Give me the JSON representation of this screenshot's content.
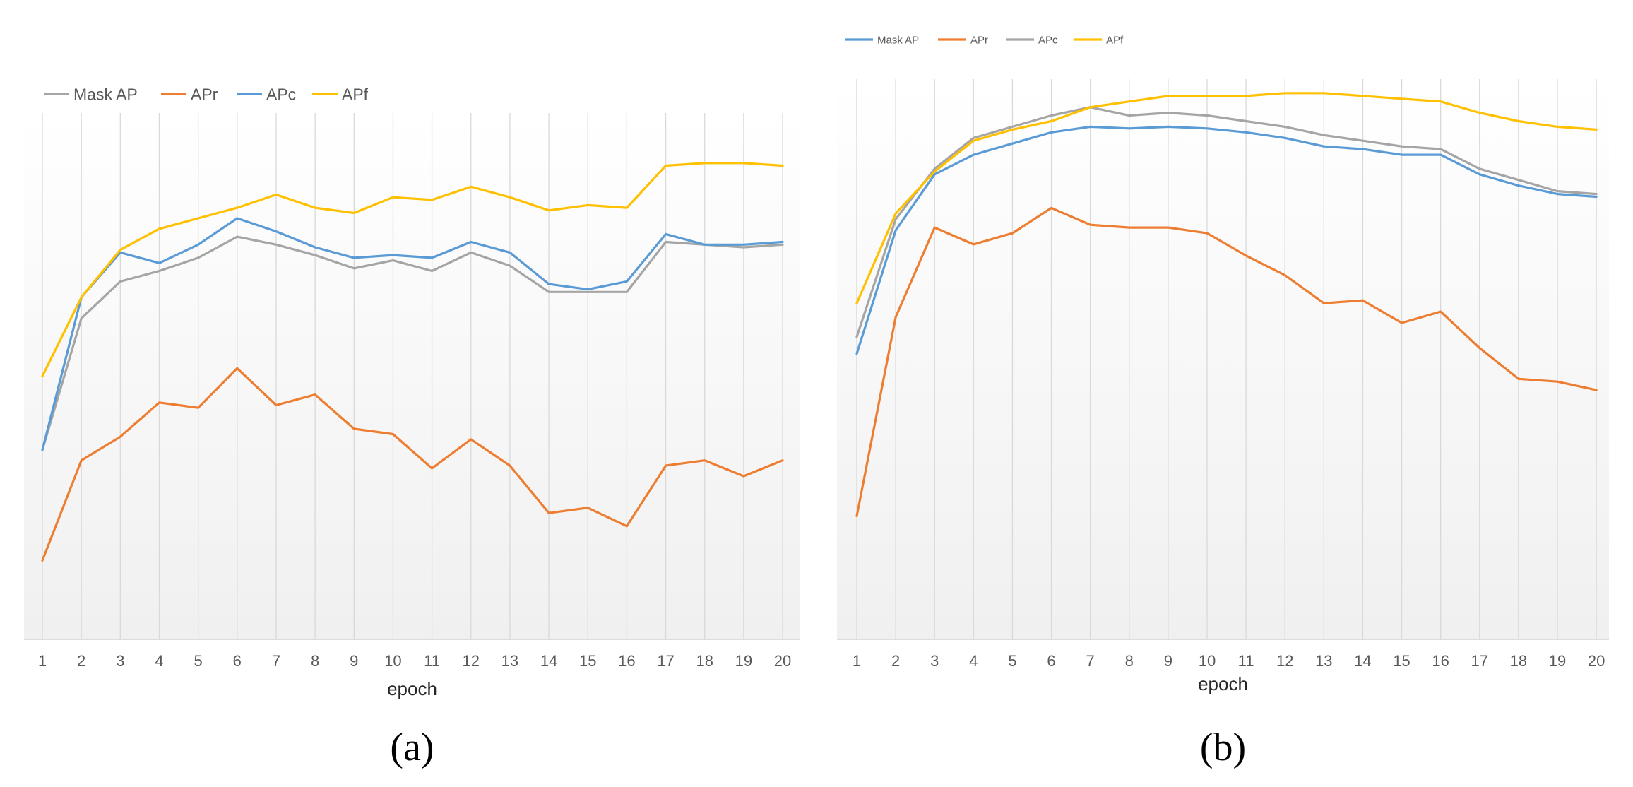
{
  "chart_data": [
    {
      "type": "line",
      "x_label": "epoch",
      "caption": "(a)",
      "categories": [
        "1",
        "2",
        "3",
        "4",
        "5",
        "6",
        "7",
        "8",
        "9",
        "10",
        "11",
        "12",
        "13",
        "14",
        "15",
        "16",
        "17",
        "18",
        "19",
        "20"
      ],
      "ylim": [
        0,
        100
      ],
      "grid": "vertical",
      "legend_position": "top-left",
      "series": [
        {
          "name": "Mask AP",
          "color": "#A5A5A5",
          "values": [
            36,
            61,
            68,
            70,
            72.5,
            76.5,
            75,
            73,
            70.5,
            72,
            70,
            73.5,
            71,
            66,
            66,
            66,
            75.5,
            75,
            74.5,
            75
          ]
        },
        {
          "name": "APr",
          "color": "#ED7D31",
          "values": [
            15,
            34,
            38.5,
            45,
            44,
            51.5,
            44.5,
            46.5,
            40,
            39,
            32.5,
            38,
            33,
            24,
            25,
            21.5,
            33,
            34,
            31,
            34
          ]
        },
        {
          "name": "APc",
          "color": "#5B9BD5",
          "values": [
            36,
            65,
            73.5,
            71.5,
            75,
            80,
            77.5,
            74.5,
            72.5,
            73,
            72.5,
            75.5,
            73.5,
            67.5,
            66.5,
            68,
            77,
            75,
            75,
            75.5
          ]
        },
        {
          "name": "APf",
          "color": "#FFC000",
          "values": [
            50,
            65,
            74,
            78,
            80,
            82,
            84.5,
            82,
            81,
            84,
            83.5,
            86,
            84,
            81.5,
            82.5,
            82,
            90,
            90.5,
            90.5,
            90
          ]
        }
      ]
    },
    {
      "type": "line",
      "x_label": "epoch",
      "caption": "(b)",
      "categories": [
        "1",
        "2",
        "3",
        "4",
        "5",
        "6",
        "7",
        "8",
        "9",
        "10",
        "11",
        "12",
        "13",
        "14",
        "15",
        "16",
        "17",
        "18",
        "19",
        "20"
      ],
      "ylim": [
        0,
        100
      ],
      "grid": "vertical",
      "legend_position": "top-left",
      "series": [
        {
          "name": "Mask AP",
          "color": "#5B9BD5",
          "values": [
            51,
            73,
            83,
            86.5,
            88.5,
            90.5,
            91.5,
            91.2,
            91.5,
            91.2,
            90.5,
            89.5,
            88,
            87.5,
            86.5,
            86.5,
            83,
            81,
            79.5,
            79
          ]
        },
        {
          "name": "APr",
          "color": "#ED7D31",
          "values": [
            22,
            57.5,
            73.5,
            70.5,
            72.5,
            77,
            74,
            73.5,
            73.5,
            72.5,
            68.5,
            65,
            60,
            60.5,
            56.5,
            58.5,
            52,
            46.5,
            46,
            44.5
          ]
        },
        {
          "name": "APc",
          "color": "#A5A5A5",
          "values": [
            54,
            75,
            84,
            89.5,
            91.5,
            93.5,
            95,
            93.5,
            94,
            93.5,
            92.5,
            91.5,
            90,
            89,
            88,
            87.5,
            84,
            82,
            80,
            79.5
          ]
        },
        {
          "name": "APf",
          "color": "#FFC000",
          "values": [
            60,
            76,
            83.5,
            89,
            91,
            92.5,
            95,
            96,
            97,
            97,
            97,
            97.5,
            97.5,
            97,
            96.5,
            96,
            94,
            92.5,
            91.5,
            91
          ]
        }
      ]
    }
  ]
}
